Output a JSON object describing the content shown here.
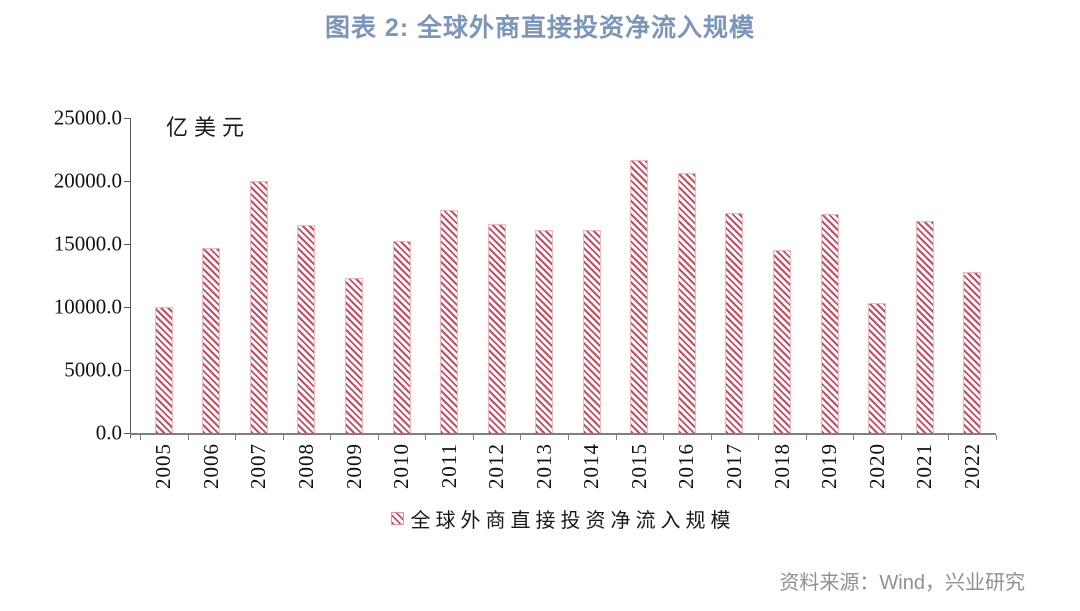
{
  "title": "图表 2: 全球外商直接投资净流入规模",
  "source": "资料来源：Wind，兴业研究",
  "legend": {
    "label": "全球外商直接投资净流入规模"
  },
  "colors": {
    "title": "#7b95bc",
    "bar_stripe": "#cc4b5e",
    "bar_border": "#f2b6bf",
    "x_axis": "#7f7f7f",
    "y_axis": "#595959",
    "tick_text": "#111111",
    "source_text": "#909090"
  },
  "chart_data": {
    "type": "bar",
    "title": "图表 2: 全球外商直接投资净流入规模",
    "unit_label": "亿美元",
    "series_name": "全球外商直接投资净流入规模",
    "categories": [
      "2005",
      "2006",
      "2007",
      "2008",
      "2009",
      "2010",
      "2011",
      "2012",
      "2013",
      "2014",
      "2015",
      "2016",
      "2017",
      "2018",
      "2019",
      "2020",
      "2021",
      "2022"
    ],
    "values": [
      10000,
      14700,
      20000,
      16500,
      12300,
      15200,
      17700,
      16600,
      16100,
      16100,
      21700,
      20600,
      17500,
      14500,
      17400,
      10300,
      16800,
      12800
    ],
    "ylim": [
      0,
      25000
    ],
    "y_ticks": [
      0,
      5000,
      10000,
      15000,
      20000,
      25000
    ],
    "y_tick_labels": [
      "0.0",
      "5000.0",
      "10000.0",
      "15000.0",
      "20000.0",
      "25000.0"
    ],
    "grid": false,
    "hatch": "diagonal-backslash",
    "legend_position": "bottom"
  }
}
